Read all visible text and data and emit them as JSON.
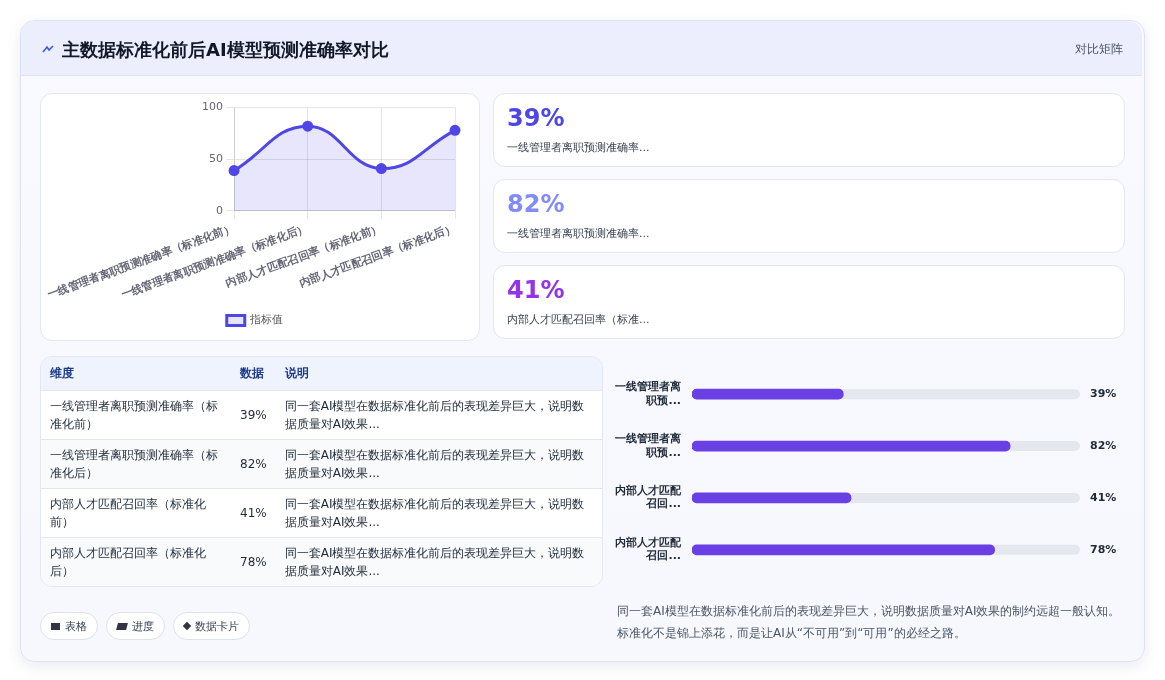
{
  "chart_data": [
    {
      "type": "other",
      "title": "主数据标准化前后AI模型预测准确率对比",
      "subtitle": "对比矩阵"
    },
    {
      "type": "area",
      "categories": [
        "一线管理者离职预测准确率（标准化前）",
        "一线管理者离职预测准确率（标准化后）",
        "内部人才匹配召回率（标准化前）",
        "内部人才匹配召回率（标准化后）"
      ],
      "series": [
        {
          "name": "指标值",
          "color": "#5046e5",
          "values": [
            39,
            82,
            41,
            78
          ]
        }
      ],
      "ylim": [
        0,
        100
      ],
      "yticks": [
        0,
        50,
        100
      ],
      "grid": true,
      "legend": "bottom",
      "marker": "circle"
    },
    {
      "type": "other",
      "categories": [
        "一线管理者离职预测准确率...",
        "一线管理者离职预测准确率...",
        "内部人才匹配召回率（标准..."
      ],
      "value_labels": [
        "39%",
        "82%",
        "41%"
      ]
    },
    {
      "type": "other",
      "categories": [
        "一线管理者离职预测准确率（标准化前）",
        "一线管理者离职预测准确率（标准化后）",
        "内部人才匹配召回率（标准化前）",
        "内部人才匹配召回率（标准化后）"
      ],
      "value_labels": [
        "39%",
        "82%",
        "41%",
        "78%"
      ],
      "annotations": [
        "维度",
        "数据",
        "说明",
        "同一套AI模型在数据标准化前后的表现差异巨大，说明数据质量对AI效果...",
        "同一套AI模型在数据标准化前后的表现差异巨大，说明数据质量对AI效果...",
        "同一套AI模型在数据标准化前后的表现差异巨大，说明数据质量对AI效果...",
        "同一套AI模型在数据标准化前后的表现差异巨大，说明数据质量对AI效果...",
        "表格",
        "进度",
        "数据卡片"
      ]
    },
    {
      "type": "bar",
      "orientation": "horizontal",
      "categories": [
        "一线管理者离职预...",
        "一线管理者离职预...",
        "内部人才匹配召回...",
        "内部人才匹配召回..."
      ],
      "values": [
        39,
        82,
        41,
        78
      ],
      "value_labels": [
        "39%",
        "82%",
        "41%",
        "78%"
      ],
      "color": "#6a3fe3",
      "xlim": [
        0,
        100
      ],
      "tick_labels": "y",
      "annotations": [
        "同一套AI模型在数据标准化前后的表现差异巨大，说明数据质量对AI效果的制约远超一般认知。标准化不是锦上添花，而是让AI从“不可用”到“可用”的必经之路。"
      ]
    }
  ]
}
